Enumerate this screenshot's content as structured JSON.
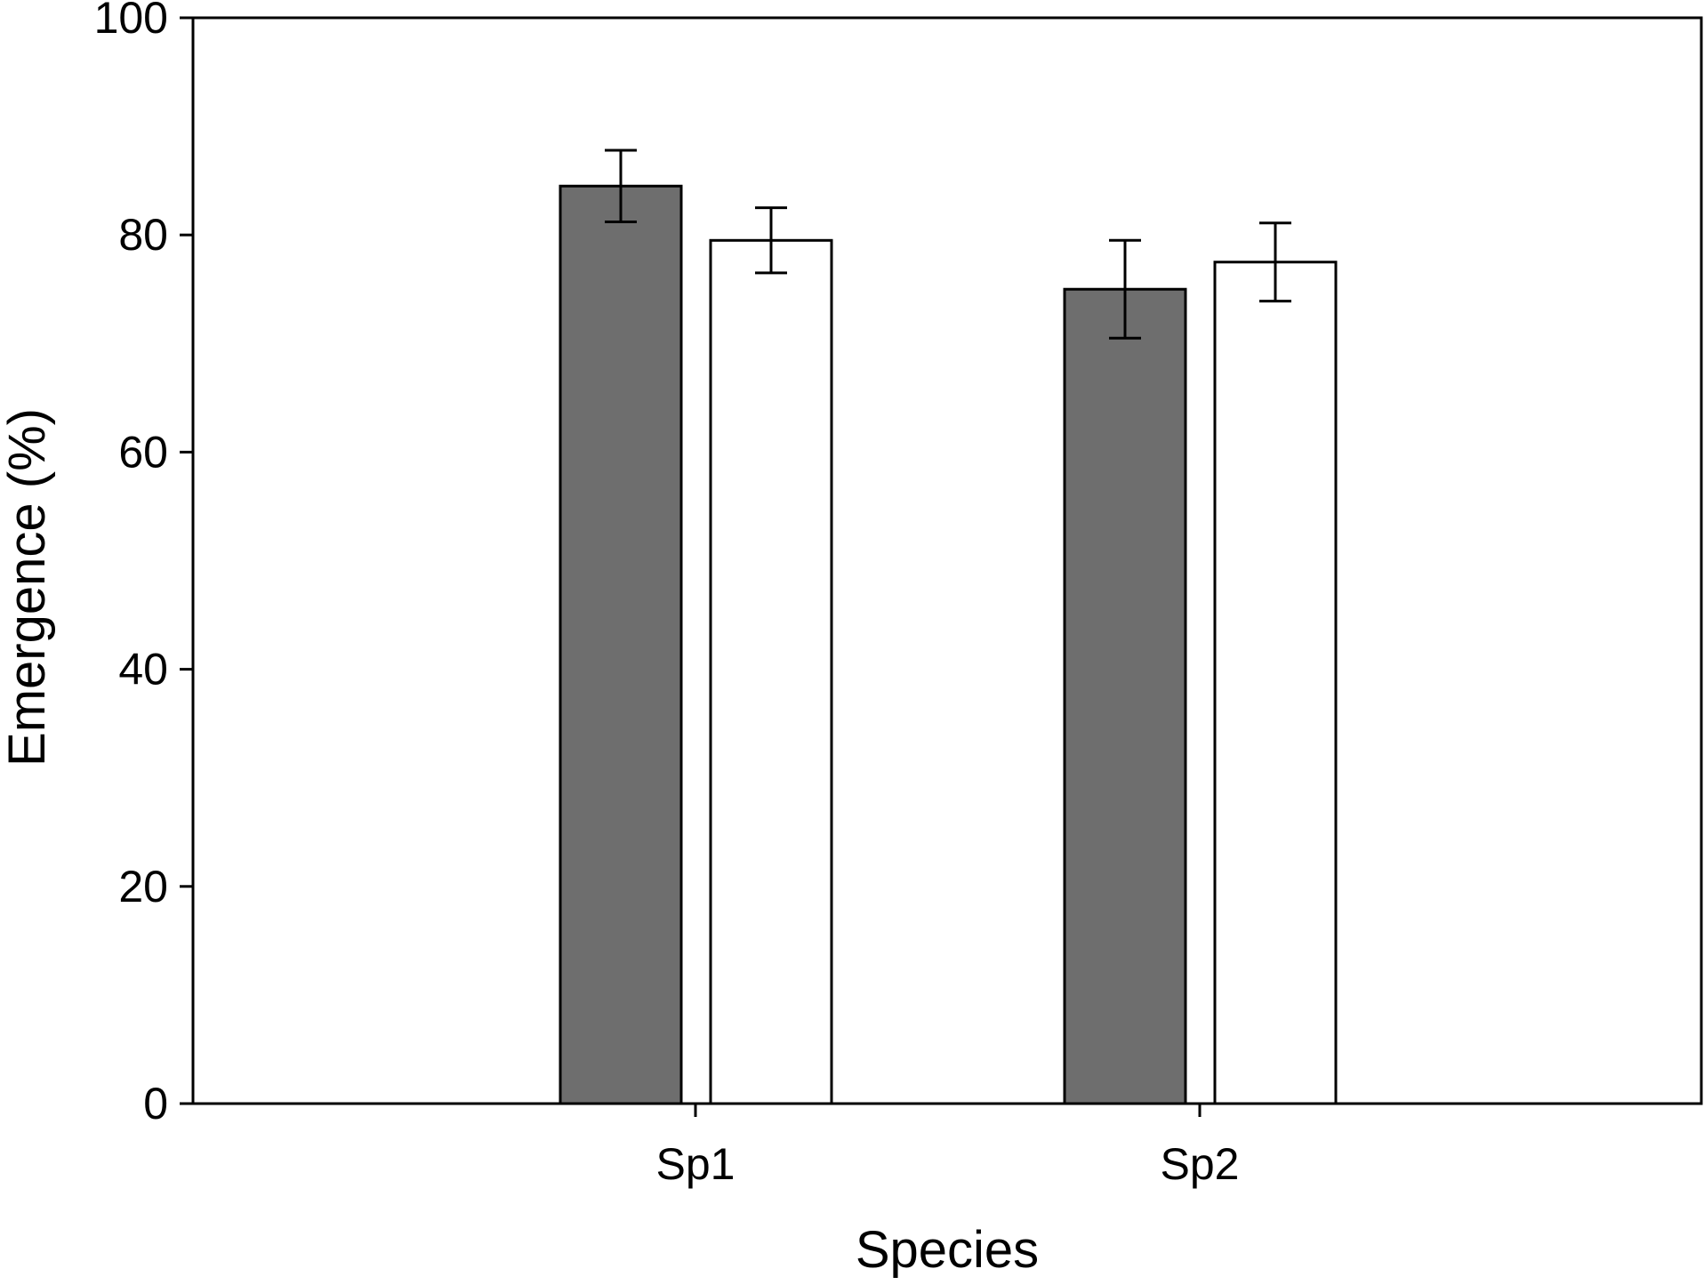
{
  "chart_data": {
    "type": "bar",
    "title": "",
    "xlabel": "Species",
    "ylabel": "Emergence (%)",
    "ylim": [
      0,
      100
    ],
    "yticks": [
      0,
      20,
      40,
      60,
      80,
      100
    ],
    "categories": [
      "Sp1",
      "Sp2"
    ],
    "grid": false,
    "legend": "none",
    "series": [
      {
        "color": "#6e6e6e",
        "values": [
          84.5,
          75.0
        ],
        "error": [
          3.3,
          4.5
        ]
      },
      {
        "color": "#ffffff",
        "values": [
          79.5,
          77.5
        ],
        "error": [
          3.0,
          3.6
        ]
      }
    ]
  }
}
